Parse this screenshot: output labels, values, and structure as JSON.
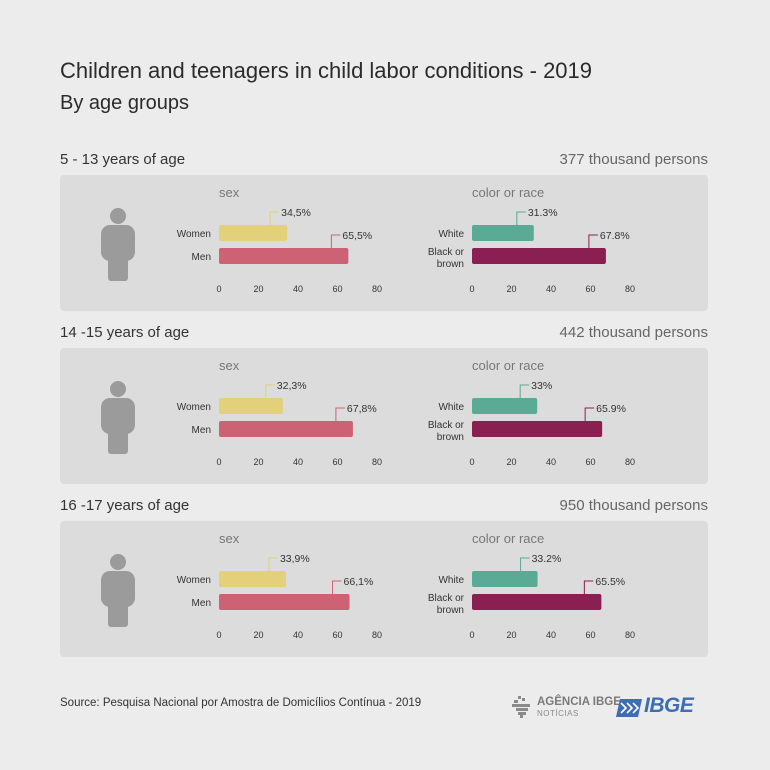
{
  "header": {
    "title": "Children and teenagers in child labor conditions  - 2019",
    "subtitle": "By age groups"
  },
  "colors": {
    "women": "#e2d07a",
    "men": "#cc6273",
    "white": "#5aaa95",
    "black_or_brown": "#8a1f52",
    "panel": "#dcdcdc",
    "person_icon": "#9b9b9b"
  },
  "panel_labels": {
    "sex": "sex",
    "race": "color or race"
  },
  "footer": {
    "source": "Source: Pesquisa Nacional por Amostra de Domicílios Contínua - 2019"
  },
  "logos": {
    "agencia_line1": "AGÊNCIA IBGE",
    "agencia_line2": "NOTÍCIAS",
    "ibge": "IBGE"
  },
  "chart_data": [
    {
      "type": "bar",
      "group": "5 - 13 years of age",
      "total": "377 thousand persons",
      "panel": "sex",
      "categories": [
        "Women",
        "Men"
      ],
      "values": [
        34.5,
        65.5
      ],
      "labels": [
        "34,5%",
        "65,5%"
      ],
      "xlim": [
        0,
        80
      ],
      "xticks": [
        0,
        20,
        40,
        60,
        80
      ]
    },
    {
      "type": "bar",
      "group": "5 - 13 years of age",
      "panel": "color or race",
      "categories": [
        "White",
        "Black or brown"
      ],
      "values": [
        31.3,
        67.8
      ],
      "labels": [
        "31.3%",
        "67.8%"
      ],
      "xlim": [
        0,
        80
      ],
      "xticks": [
        0,
        20,
        40,
        60,
        80
      ]
    },
    {
      "type": "bar",
      "group": "14 -15 years of age",
      "total": "442 thousand persons",
      "panel": "sex",
      "categories": [
        "Women",
        "Men"
      ],
      "values": [
        32.3,
        67.8
      ],
      "labels": [
        "32,3%",
        "67,8%"
      ],
      "xlim": [
        0,
        80
      ],
      "xticks": [
        0,
        20,
        40,
        60,
        80
      ]
    },
    {
      "type": "bar",
      "group": "14 -15 years of age",
      "panel": "color or race",
      "categories": [
        "White",
        "Black or brown"
      ],
      "values": [
        33,
        65.9
      ],
      "labels": [
        "33%",
        "65.9%"
      ],
      "xlim": [
        0,
        80
      ],
      "xticks": [
        0,
        20,
        40,
        60,
        80
      ]
    },
    {
      "type": "bar",
      "group": "16 -17 years of age",
      "total": "950 thousand persons",
      "panel": "sex",
      "categories": [
        "Women",
        "Men"
      ],
      "values": [
        33.9,
        66.1
      ],
      "labels": [
        "33,9%",
        "66,1%"
      ],
      "xlim": [
        0,
        80
      ],
      "xticks": [
        0,
        20,
        40,
        60,
        80
      ]
    },
    {
      "type": "bar",
      "group": "16 -17 years of age",
      "panel": "color or race",
      "categories": [
        "White",
        "Black or brown"
      ],
      "values": [
        33.2,
        65.5
      ],
      "labels": [
        "33.2%",
        "65.5%"
      ],
      "xlim": [
        0,
        80
      ],
      "xticks": [
        0,
        20,
        40,
        60,
        80
      ]
    }
  ]
}
